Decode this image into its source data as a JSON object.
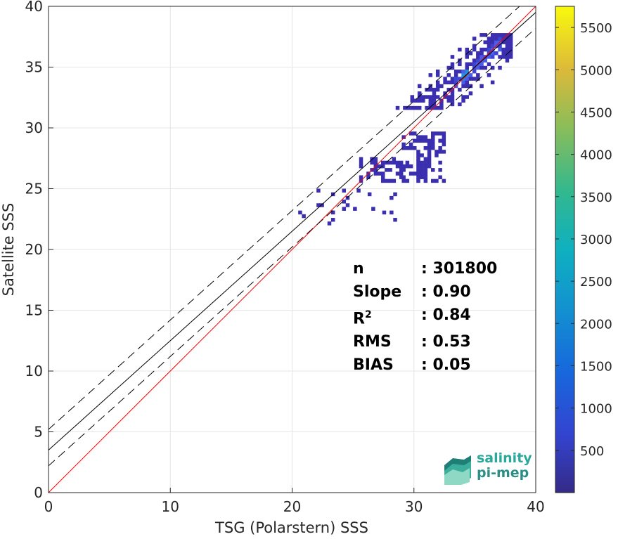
{
  "chart_data": {
    "type": "heatmap",
    "subtype": "2d-density-scatter",
    "xlabel": "TSG (Polarstern) SSS",
    "ylabel": "Satellite SSS",
    "xlim": [
      0,
      40
    ],
    "ylim": [
      0,
      40
    ],
    "xticks": [
      "0",
      "10",
      "20",
      "30",
      "40"
    ],
    "yticks": [
      "0",
      "5",
      "10",
      "15",
      "20",
      "25",
      "30",
      "35",
      "40"
    ],
    "grid": true,
    "colormap": "parula",
    "colorbar": {
      "ticks": [
        "500",
        "1000",
        "1500",
        "2000",
        "2500",
        "3000",
        "3500",
        "4000",
        "4500",
        "5000",
        "5500"
      ],
      "min": 0,
      "max": 5750
    },
    "lines": [
      {
        "kind": "identity",
        "color": "#ff0000",
        "x": [
          0,
          40
        ],
        "y": [
          0,
          40
        ]
      },
      {
        "kind": "regression",
        "color": "#000000",
        "x": [
          0,
          40
        ],
        "y": [
          3.5,
          39.5
        ]
      },
      {
        "kind": "regression-upper",
        "color": "#000000",
        "dashed": true,
        "x": [
          0,
          40
        ],
        "y": [
          5.2,
          41.2
        ]
      },
      {
        "kind": "regression-lower",
        "color": "#000000",
        "dashed": true,
        "x": [
          0,
          40
        ],
        "y": [
          2.2,
          38.2
        ]
      }
    ],
    "density_regions": [
      {
        "xmin": 28.5,
        "xmax": 38.0,
        "ymin": 31.5,
        "ymax": 37.6,
        "level": "high"
      },
      {
        "xmin": 29.0,
        "xmax": 32.5,
        "ymin": 25.5,
        "ymax": 29.5,
        "level": "low"
      },
      {
        "xmin": 25.5,
        "xmax": 29.0,
        "ymin": 25.5,
        "ymax": 27.5,
        "level": "low"
      },
      {
        "xmin": 20.5,
        "xmax": 29.0,
        "ymin": 22.0,
        "ymax": 25.0,
        "level": "sparse"
      }
    ],
    "annotations": [
      {
        "label": "n",
        "value": ": 301800"
      },
      {
        "label": "Slope",
        "value": ": 0.90"
      },
      {
        "label": "R",
        "sup": "2",
        "value": ": 0.84"
      },
      {
        "label": "RMS",
        "value": ": 0.53"
      },
      {
        "label": "BIAS",
        "value": ": 0.05"
      }
    ]
  },
  "logo": {
    "line1": "salinity",
    "line2": "pi-mep"
  },
  "colors": {
    "identity_line": "#ff0000",
    "fit_line": "#000000",
    "low_density": "#3b2fb0",
    "high_density": "#1f8fe0",
    "logo_teal": "#2aa89a"
  }
}
